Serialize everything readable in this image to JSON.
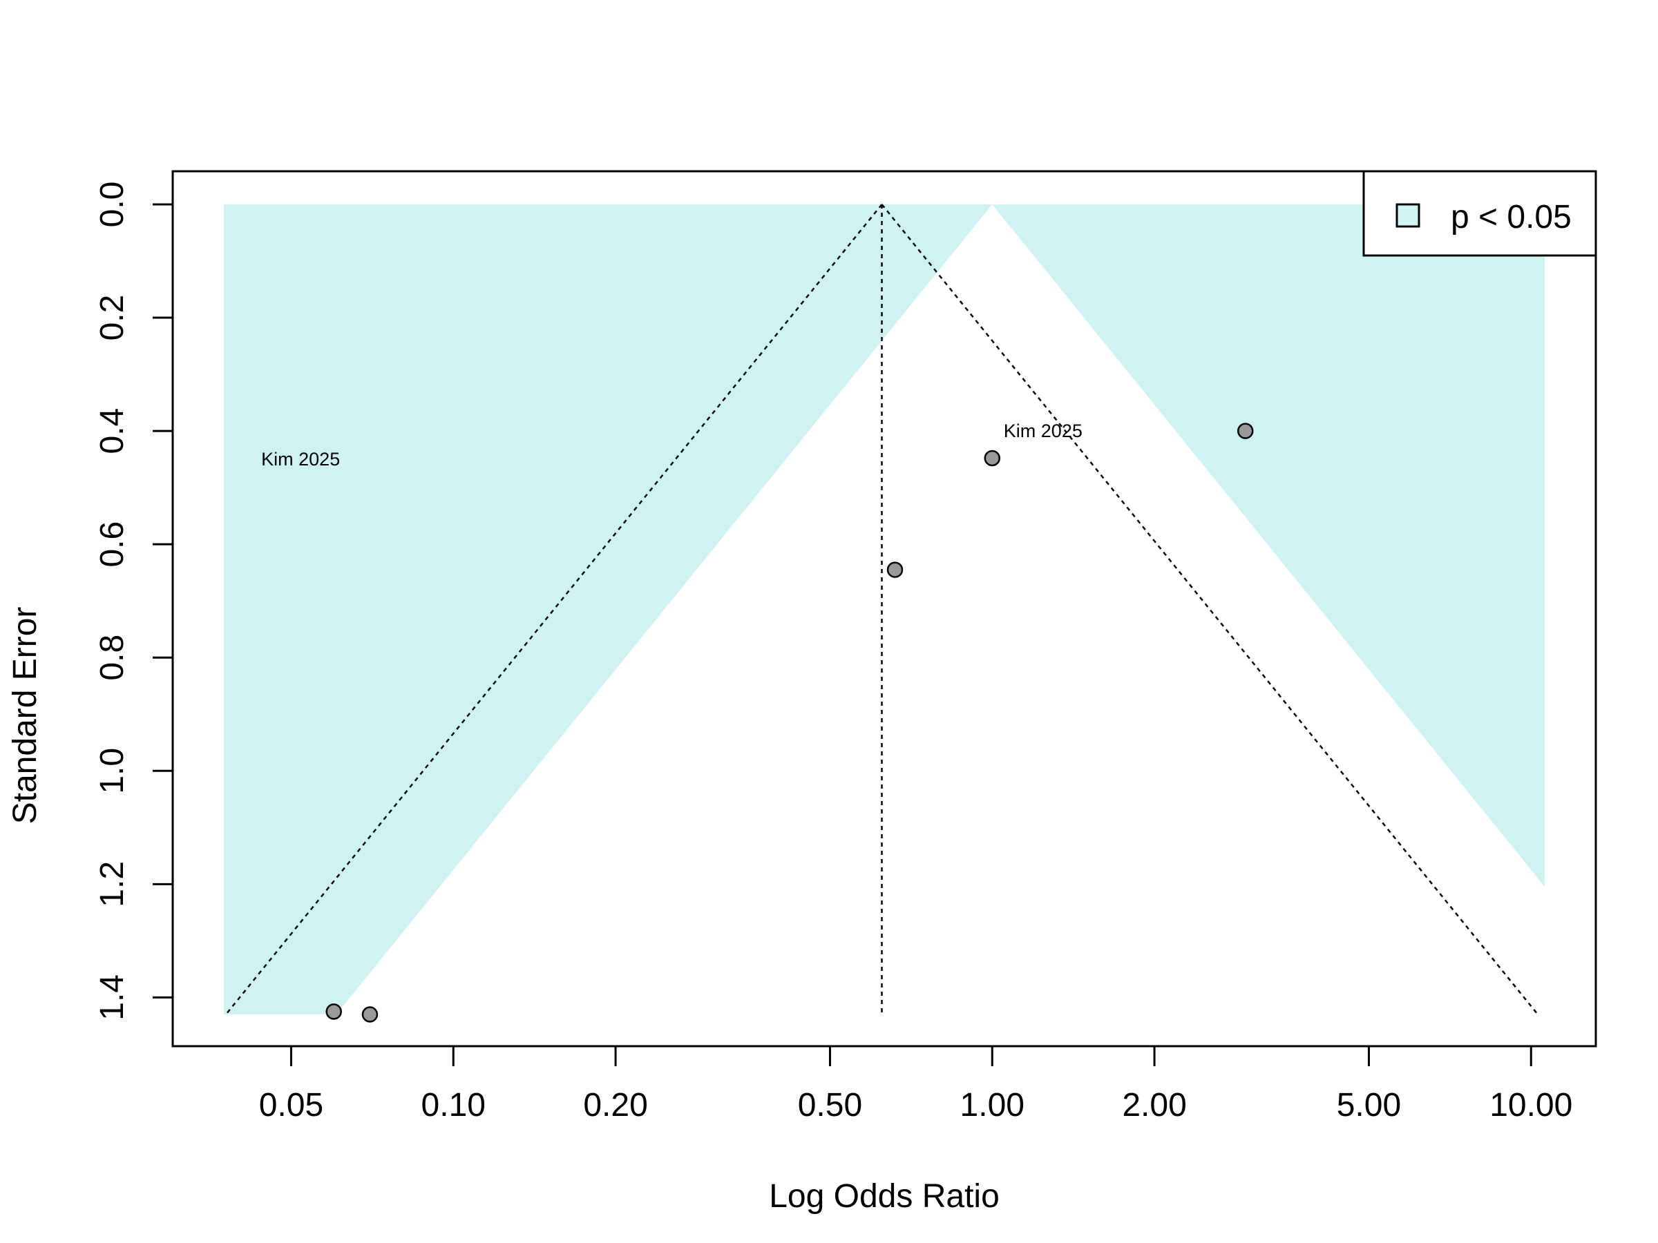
{
  "chart_data": {
    "type": "scatter",
    "subtype": "funnel-plot",
    "title": "",
    "xlabel": "Log Odds Ratio",
    "ylabel": "Standard Error",
    "x_scale": "log",
    "x_ticks": [
      0.05,
      0.1,
      0.2,
      0.5,
      1.0,
      2.0,
      5.0,
      10.0
    ],
    "x_tick_labels": [
      "0.05",
      "0.10",
      "0.20",
      "0.50",
      "1.00",
      "2.00",
      "5.00",
      "10.00"
    ],
    "xlim": [
      0.0375,
      10.6
    ],
    "y_ticks": [
      0.0,
      0.2,
      0.4,
      0.6,
      0.8,
      1.0,
      1.2,
      1.4
    ],
    "y_tick_labels": [
      "0.0",
      "0.2",
      "0.4",
      "0.6",
      "0.8",
      "1.0",
      "1.2",
      "1.4"
    ],
    "ylim": [
      1.43,
      0.0
    ],
    "y_reversed": true,
    "estimate": 0.624,
    "reference": 1.0,
    "points": [
      {
        "x": 0.06,
        "y": 1.425
      },
      {
        "x": 0.07,
        "y": 1.43
      },
      {
        "x": 0.66,
        "y": 0.645
      },
      {
        "x": 1.0,
        "y": 0.448
      },
      {
        "x": 2.95,
        "y": 0.4
      }
    ],
    "annotations": [
      {
        "text": "Kim 2025",
        "x": 0.044,
        "y": 0.45
      },
      {
        "text": "Kim 2025",
        "x": 1.05,
        "y": 0.4
      }
    ],
    "significance_region": {
      "label": "p < 0.05",
      "color": "#cff2f2"
    },
    "point_color": "#999999",
    "grid": false,
    "legend": {
      "position": "top-right",
      "entries": [
        "p < 0.05"
      ]
    }
  }
}
